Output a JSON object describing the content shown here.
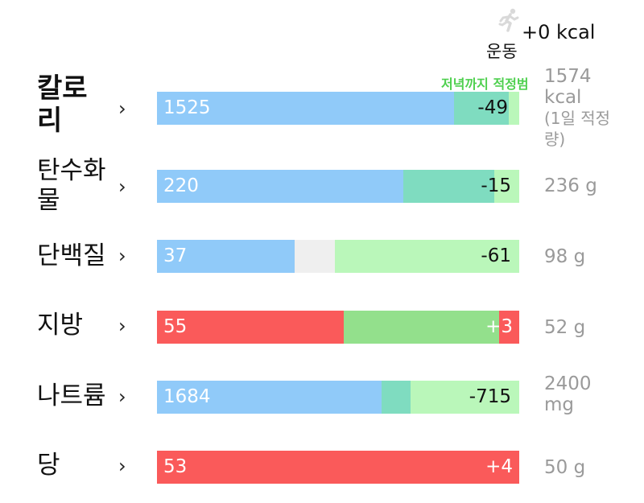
{
  "colors": {
    "consumed_under": "#90caf9",
    "consumed_over": "#fa5a5a",
    "remaining_to_evening": "#7fdcc0",
    "remaining": "#baf7ba",
    "within_range": "#93e08c",
    "empty_gap": "#efefef",
    "target_text": "#9a9a9a",
    "evening_label": "#4fd04f"
  },
  "exercise": {
    "icon": "running-person-icon",
    "label": "운동",
    "kcal": "+0 kcal"
  },
  "evening_label": "저녁까지 적정범",
  "nutrients": [
    {
      "id": "calories",
      "name_line1": "칼로",
      "name_line2": "리",
      "current": "1525",
      "diff": "-49",
      "target_line1": "1574",
      "target_line2": "kcal",
      "target_line3": "(1일 적정",
      "target_line4": "량)",
      "consumed_fraction": 0.82,
      "evening_end_fraction": 0.97
    },
    {
      "id": "carbs",
      "name_line1": "탄수화",
      "name_line2": "물",
      "current": "220",
      "diff": "-15",
      "target_line1": "236 g",
      "consumed_fraction": 0.68,
      "evening_end_fraction": 0.93
    },
    {
      "id": "protein",
      "name_line1": "단백질",
      "current": "37",
      "diff": "-61",
      "target_line1": "98 g",
      "consumed_fraction": 0.38,
      "gap_end_fraction": 0.49
    },
    {
      "id": "fat",
      "name_line1": "지방",
      "current": "55",
      "diff": "+3",
      "target_line1": "52 g",
      "consumed_fraction": 0.515,
      "within_end_fraction": 0.945
    },
    {
      "id": "sodium",
      "name_line1": "나트륨",
      "current": "1684",
      "diff": "-715",
      "target_line1": "2400",
      "target_line2": "mg",
      "consumed_fraction": 0.62,
      "evening_end_fraction": 0.7
    },
    {
      "id": "sugar",
      "name_line1": "당",
      "current": "53",
      "diff": "+4",
      "target_line1": "50 g",
      "consumed_fraction": 1.0
    }
  ]
}
